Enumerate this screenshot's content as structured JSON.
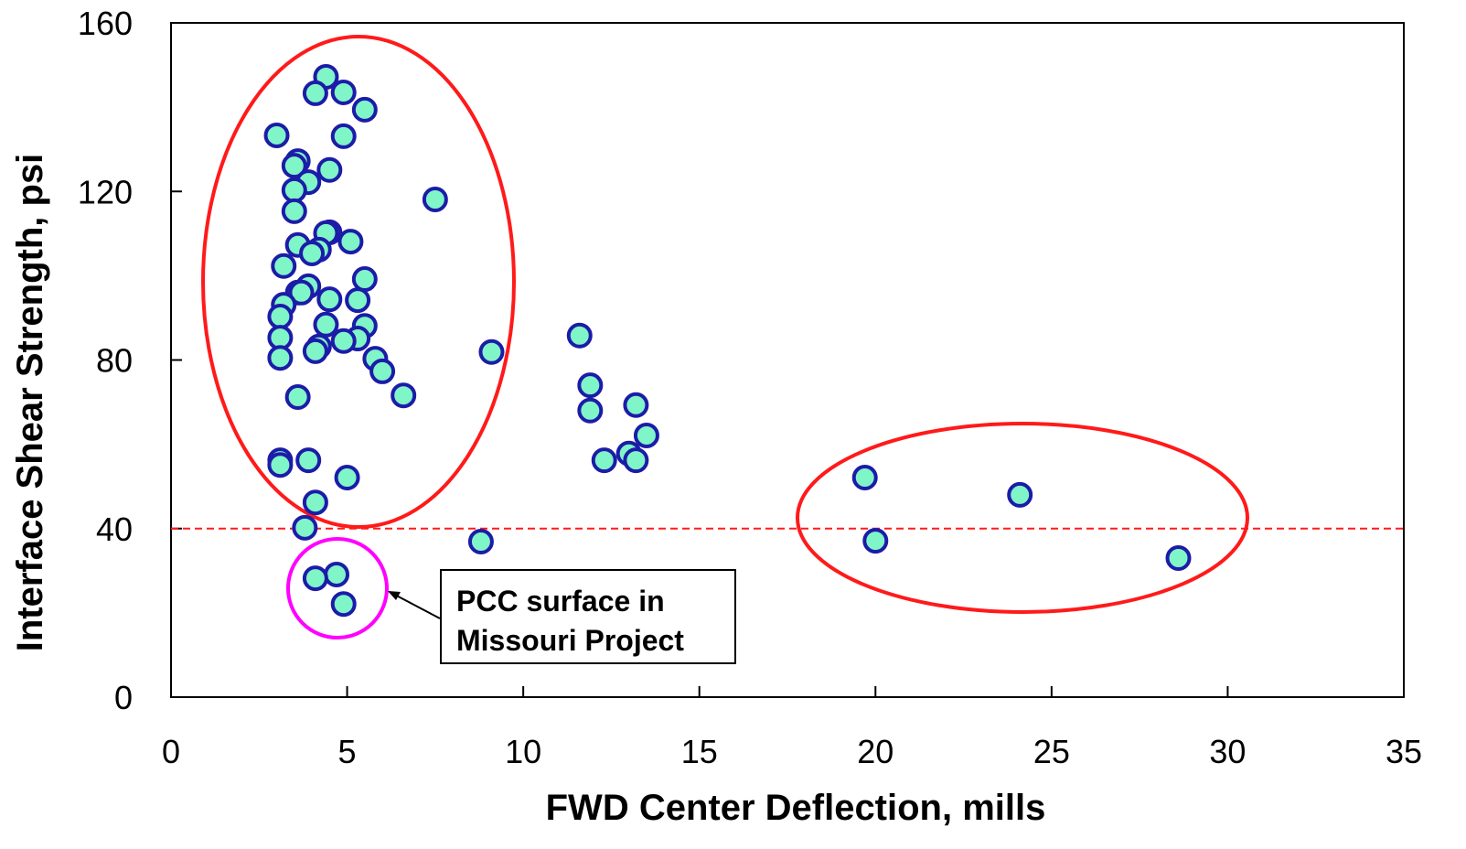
{
  "chart_data": {
    "type": "scatter",
    "x_label": "FWD Center Deflection, mills",
    "y_label": "Interface Shear Strength, psi",
    "annotation": "PCC surface in Missouri Project",
    "reference_line": 40,
    "xlim": [
      0,
      35
    ],
    "xticks": [
      0,
      5,
      10,
      15,
      20,
      25,
      30,
      35
    ],
    "ylim": [
      0,
      160
    ],
    "yticks": [
      0,
      40,
      80,
      120,
      160
    ],
    "marker_color": "#7ff5c8",
    "marker_edge": "#1c1ca8",
    "line_color": "#ff1a1a",
    "x": [
      4.4,
      4.1,
      4.9,
      5.5,
      3.0,
      4.9,
      3.6,
      3.5,
      4.5,
      3.9,
      3.5,
      7.5,
      3.5,
      4.5,
      4.4,
      5.1,
      3.6,
      4.2,
      4.0,
      3.2,
      5.5,
      3.9,
      3.6,
      3.7,
      4.5,
      5.3,
      3.2,
      3.1,
      4.4,
      5.5,
      5.3,
      3.1,
      4.9,
      11.6,
      4.2,
      4.1,
      9.1,
      3.1,
      5.8,
      6.0,
      11.9,
      3.6,
      6.6,
      13.2,
      11.9,
      13.5,
      13.0,
      3.1,
      12.3,
      13.2,
      3.9,
      3.1,
      5.0,
      19.7,
      24.1,
      4.1,
      3.8,
      8.8,
      20.0,
      28.6,
      4.7,
      4.1,
      4.9
    ],
    "y": [
      147.2,
      143.3,
      143.5,
      139.4,
      133.3,
      133.1,
      127.2,
      126.1,
      125.1,
      122.2,
      120.3,
      118.1,
      115.3,
      110.3,
      110.1,
      108.1,
      107.3,
      106.2,
      105.3,
      102.3,
      99.2,
      97.5,
      96.0,
      96.0,
      94.4,
      94.2,
      93.1,
      90.3,
      88.4,
      88.1,
      85.1,
      85.3,
      84.5,
      85.8,
      83.2,
      82.1,
      81.9,
      80.5,
      80.3,
      77.3,
      74.0,
      71.2,
      71.6,
      69.3,
      68.0,
      62.1,
      57.8,
      56.2,
      56.2,
      56.2,
      56.2,
      55.1,
      52.1,
      52.1,
      48.0,
      46.2,
      40.2,
      36.9,
      37.1,
      33.0,
      29.1,
      28.2,
      22.1
    ]
  }
}
